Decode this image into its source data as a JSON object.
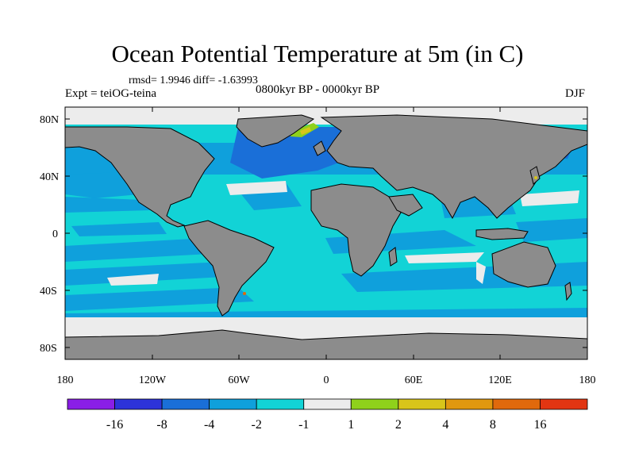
{
  "title": "Ocean Potential Temperature at 5m (in C)",
  "stats_line": "rmsd= 1.9946 diff= -1.63993",
  "experiment": "Expt = teiOG-teina",
  "period": "0800kyr BP - 0000kyr BP",
  "season": "DJF",
  "latitude_labels": [
    "80N",
    "40N",
    "0",
    "40S",
    "80S"
  ],
  "longitude_labels": [
    "180",
    "120W",
    "60W",
    "0",
    "60E",
    "120E",
    "180"
  ],
  "colorbar": {
    "labels": [
      "-16",
      "-8",
      "-4",
      "-2",
      "-1",
      "1",
      "2",
      "4",
      "8",
      "16"
    ],
    "colors": [
      "#8a1ee6",
      "#2d33d9",
      "#1a6fd8",
      "#0fa0dc",
      "#12d3d6",
      "#ececec",
      "#8fd11b",
      "#d8c51a",
      "#e0980f",
      "#e0690c",
      "#e23512"
    ]
  },
  "colors": {
    "land": "#8c8c8c",
    "ocean_default": "#12d3d6",
    "coast": "#000000"
  }
}
